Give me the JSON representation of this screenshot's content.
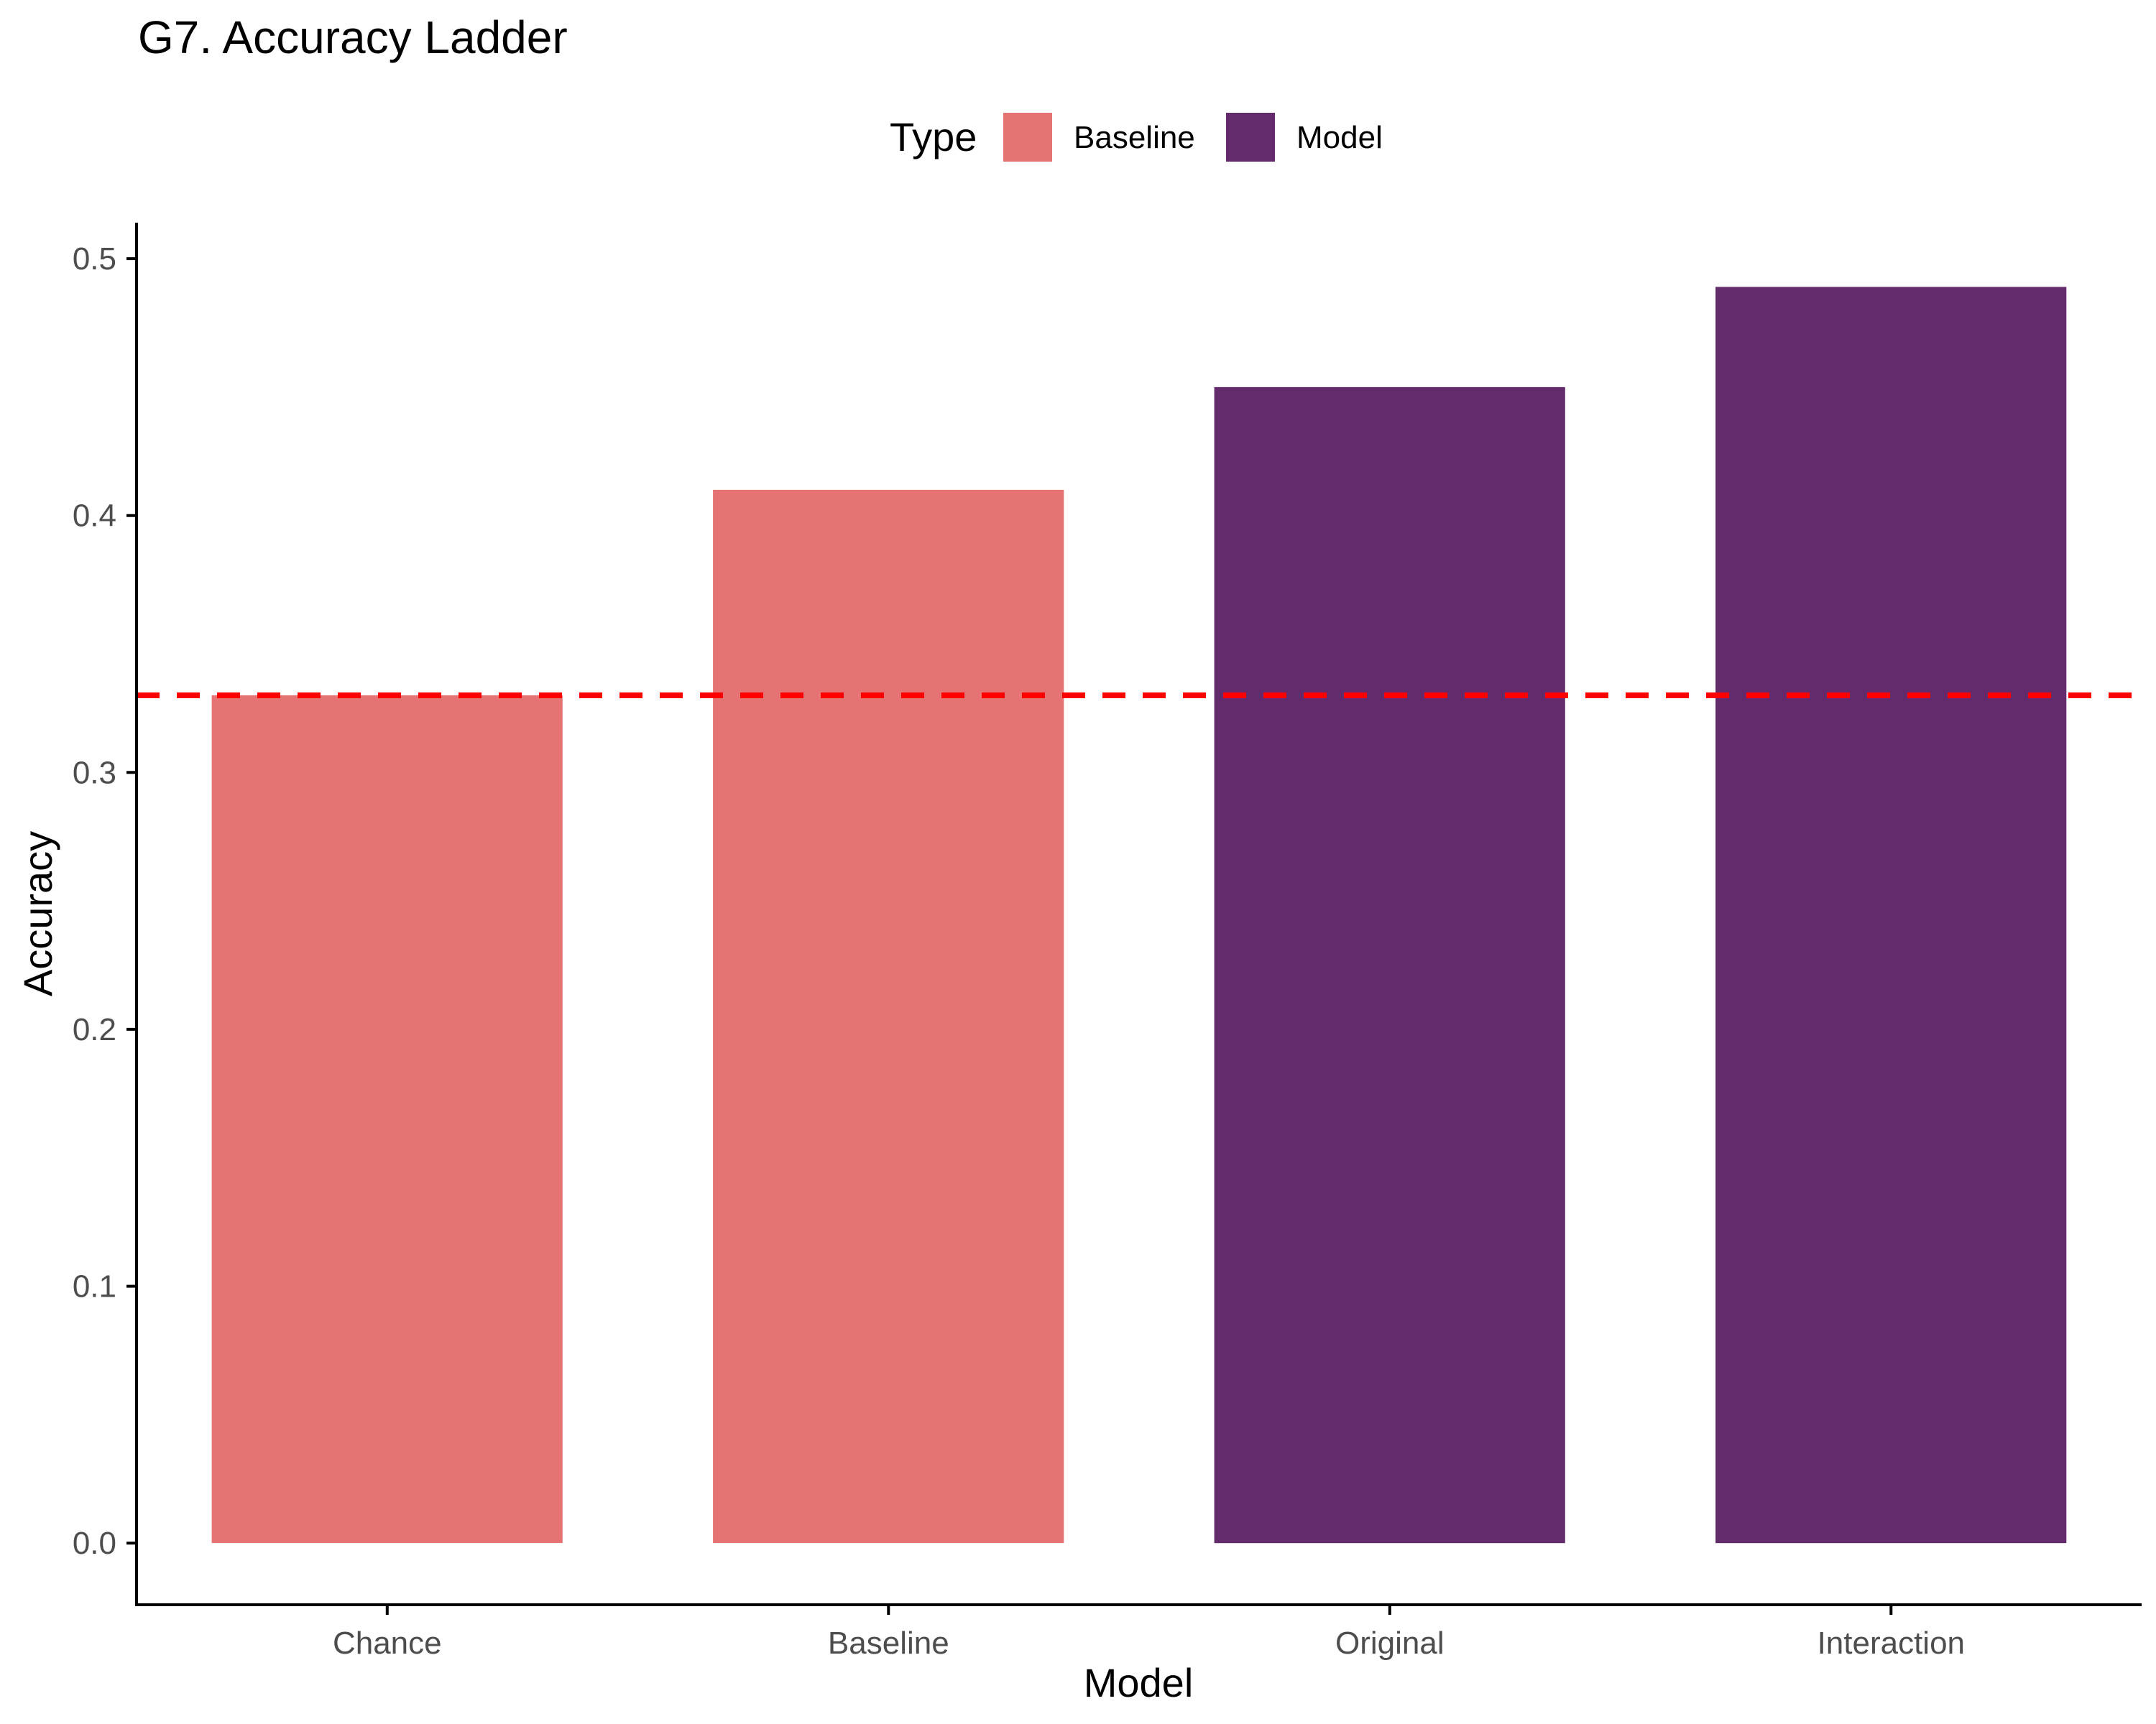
{
  "colors": {
    "Baseline": "#E57373",
    "Model": "#632B6C",
    "reference_line": "#FF0000",
    "axis": "#000000",
    "tick_text": "#4D4D4D"
  },
  "chart_data": {
    "type": "bar",
    "title": "G7. Accuracy Ladder",
    "xlabel": "Model",
    "ylabel": "Accuracy",
    "categories": [
      "Chance",
      "Baseline",
      "Original",
      "Interaction"
    ],
    "values": [
      0.33,
      0.41,
      0.45,
      0.489
    ],
    "fill_groups": [
      "Baseline",
      "Baseline",
      "Model",
      "Model"
    ],
    "ylim": [
      -0.024,
      0.514
    ],
    "yticks": [
      0.0,
      0.1,
      0.2,
      0.3,
      0.4,
      0.5
    ],
    "ytick_labels": [
      "0.0",
      "0.1",
      "0.2",
      "0.3",
      "0.4",
      "0.5"
    ],
    "reference_line": {
      "y": 0.33,
      "style": "dashed"
    },
    "legend": {
      "title": "Type",
      "entries": [
        "Baseline",
        "Model"
      ],
      "placement": "top"
    },
    "grid": false
  }
}
